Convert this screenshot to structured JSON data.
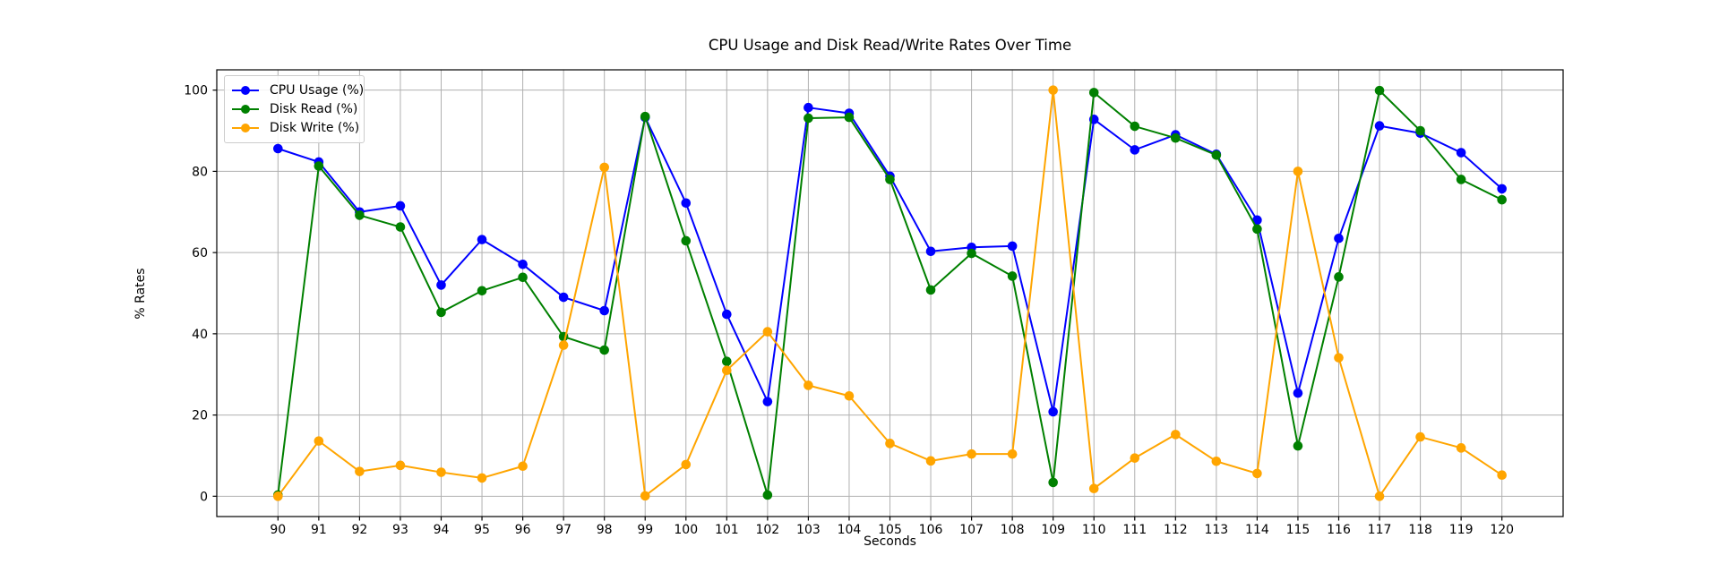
{
  "figure": {
    "background": "#ffffff"
  },
  "chart_data": {
    "type": "line",
    "title": "CPU Usage and Disk Read/Write Rates Over Time",
    "xlabel": "Seconds",
    "ylabel": "% Rates",
    "x": [
      90,
      91,
      92,
      93,
      94,
      95,
      96,
      97,
      98,
      99,
      100,
      101,
      102,
      103,
      104,
      105,
      106,
      107,
      108,
      109,
      110,
      111,
      112,
      113,
      114,
      115,
      116,
      117,
      118,
      119,
      120
    ],
    "series": [
      {
        "name": "CPU Usage (%)",
        "color": "#0000ff",
        "values": [
          85.6,
          82.3,
          70.0,
          71.5,
          52.0,
          63.2,
          57.1,
          49.0,
          45.7,
          93.3,
          72.2,
          44.8,
          23.3,
          95.7,
          94.3,
          78.8,
          60.3,
          61.3,
          61.6,
          20.8,
          92.8,
          85.3,
          89.0,
          84.2,
          68.0,
          25.4,
          63.5,
          91.2,
          89.4,
          84.6,
          75.7
        ]
      },
      {
        "name": "Disk Read (%)",
        "color": "#008000",
        "values": [
          0.3,
          81.3,
          69.2,
          66.3,
          45.3,
          50.6,
          53.9,
          39.3,
          36.0,
          93.5,
          62.9,
          33.2,
          0.3,
          93.1,
          93.3,
          78.0,
          50.8,
          59.8,
          54.2,
          3.4,
          99.4,
          91.1,
          88.2,
          84.0,
          65.8,
          12.4,
          54.0,
          99.9,
          90.0,
          78.0,
          73.0
        ]
      },
      {
        "name": "Disk Write (%)",
        "color": "#ffa500",
        "values": [
          0.0,
          13.6,
          6.1,
          7.6,
          5.9,
          4.5,
          7.4,
          37.2,
          81.0,
          0.1,
          7.8,
          31.0,
          40.5,
          27.3,
          24.7,
          13.0,
          8.7,
          10.4,
          10.4,
          100.0,
          1.9,
          9.4,
          15.2,
          8.6,
          5.6,
          80.0,
          34.1,
          0.0,
          14.6,
          11.9,
          5.2
        ]
      }
    ],
    "xlim": [
      88.5,
      121.5
    ],
    "ylim": [
      -5,
      105
    ],
    "x_ticks": [
      90,
      91,
      92,
      93,
      94,
      95,
      96,
      97,
      98,
      99,
      100,
      101,
      102,
      103,
      104,
      105,
      106,
      107,
      108,
      109,
      110,
      111,
      112,
      113,
      114,
      115,
      116,
      117,
      118,
      119,
      120
    ],
    "y_ticks": [
      0,
      20,
      40,
      60,
      80,
      100
    ],
    "grid": true,
    "legend_position": "upper-left",
    "marker": "circle"
  },
  "style_colors": {
    "grid": "#b0b0b0",
    "axis": "#000000",
    "tick_text": "#000000",
    "legend_border": "#cccccc"
  }
}
